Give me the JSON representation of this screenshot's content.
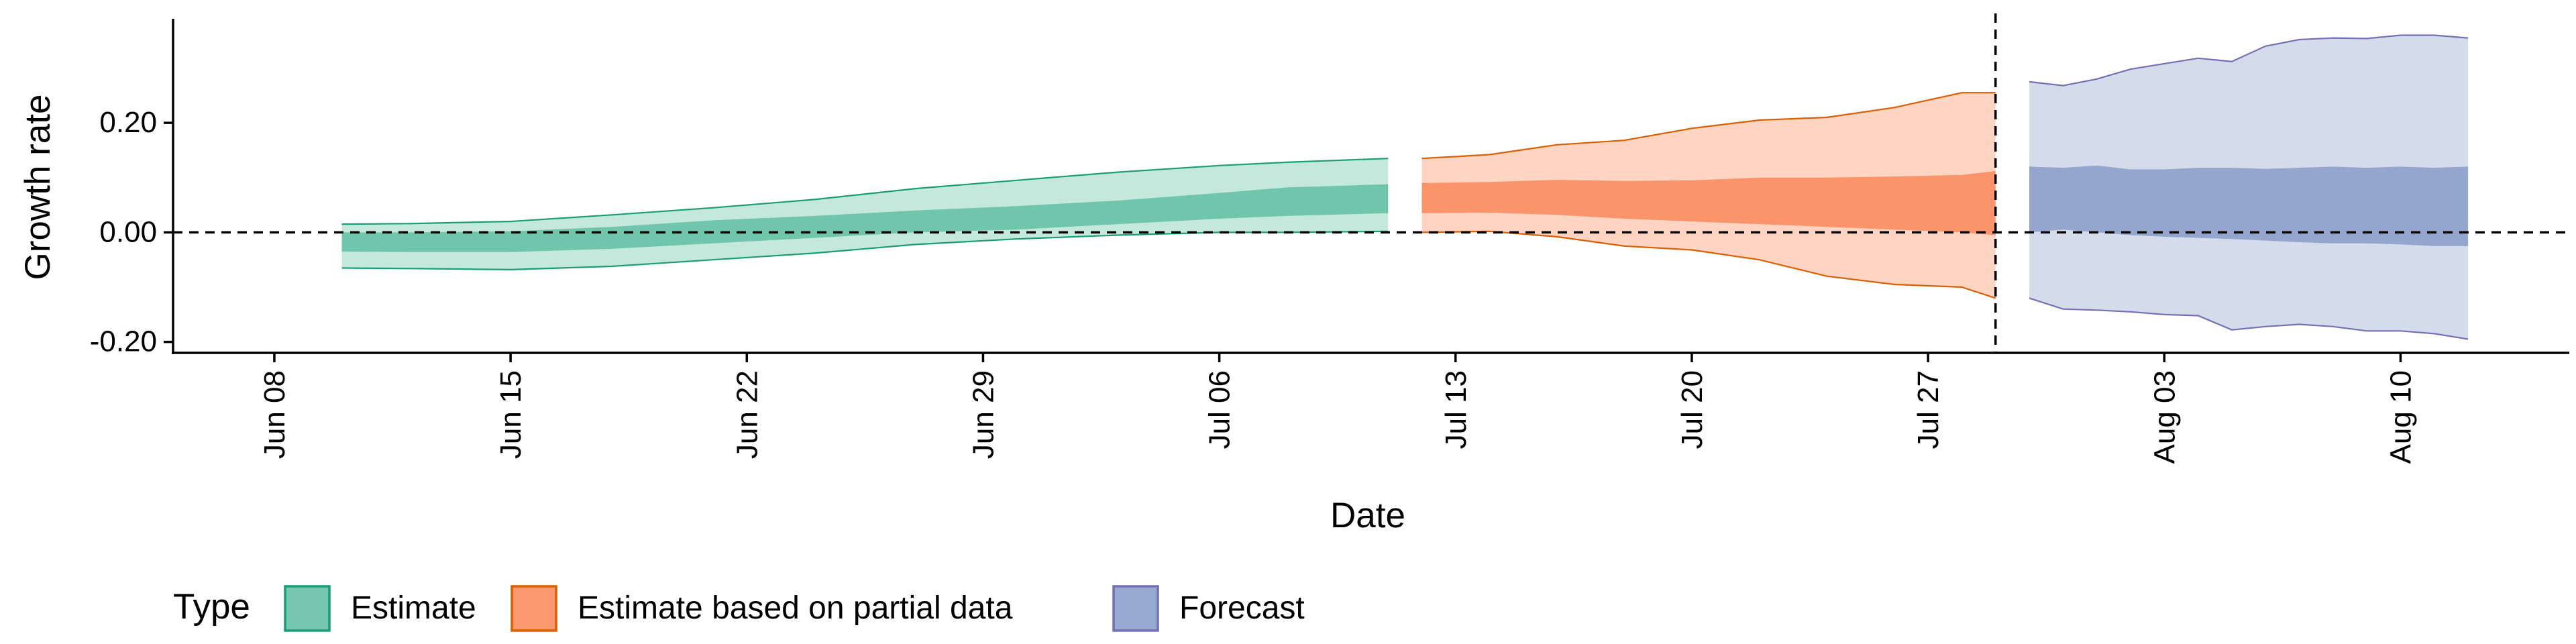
{
  "chart_data": {
    "type": "area",
    "xlabel": "Date",
    "ylabel": "Growth rate",
    "x_range": [
      "2020-06-05",
      "2020-08-15"
    ],
    "ylim": [
      -0.22,
      0.39
    ],
    "x_ticks": [
      {
        "date": "2020-06-08",
        "label": "Jun 08"
      },
      {
        "date": "2020-06-15",
        "label": "Jun 15"
      },
      {
        "date": "2020-06-22",
        "label": "Jun 22"
      },
      {
        "date": "2020-06-29",
        "label": "Jun 29"
      },
      {
        "date": "2020-07-06",
        "label": "Jul 06"
      },
      {
        "date": "2020-07-13",
        "label": "Jul 13"
      },
      {
        "date": "2020-07-20",
        "label": "Jul 20"
      },
      {
        "date": "2020-07-27",
        "label": "Jul 27"
      },
      {
        "date": "2020-08-03",
        "label": "Aug 03"
      },
      {
        "date": "2020-08-10",
        "label": "Aug 10"
      }
    ],
    "y_ticks": [
      {
        "value": -0.2,
        "label": "-0.20"
      },
      {
        "value": 0.0,
        "label": "0.00"
      },
      {
        "value": 0.2,
        "label": "0.20"
      }
    ],
    "reference_lines": [
      {
        "axis": "y",
        "value": 0.0,
        "style": "dashed"
      },
      {
        "axis": "x",
        "value": "2020-07-29",
        "style": "dashed"
      }
    ],
    "legend": {
      "title": "Type",
      "position": "bottom-left"
    },
    "series": [
      {
        "name": "Estimate",
        "fill_color": "#66c2a5",
        "stroke_color": "#1b9e77",
        "points": [
          {
            "x": "2020-06-10",
            "lower_90": -0.065,
            "lower_50": -0.035,
            "upper_50": 0.0,
            "upper_90": 0.015
          },
          {
            "x": "2020-06-12",
            "lower_90": -0.066,
            "lower_50": -0.036,
            "upper_50": 0.0,
            "upper_90": 0.016
          },
          {
            "x": "2020-06-15",
            "lower_90": -0.068,
            "lower_50": -0.036,
            "upper_50": 0.002,
            "upper_90": 0.02
          },
          {
            "x": "2020-06-18",
            "lower_90": -0.062,
            "lower_50": -0.03,
            "upper_50": 0.01,
            "upper_90": 0.032
          },
          {
            "x": "2020-06-21",
            "lower_90": -0.05,
            "lower_50": -0.02,
            "upper_50": 0.022,
            "upper_90": 0.045
          },
          {
            "x": "2020-06-24",
            "lower_90": -0.038,
            "lower_50": -0.01,
            "upper_50": 0.03,
            "upper_90": 0.06
          },
          {
            "x": "2020-06-27",
            "lower_90": -0.022,
            "lower_50": 0.0,
            "upper_50": 0.04,
            "upper_90": 0.08
          },
          {
            "x": "2020-06-30",
            "lower_90": -0.012,
            "lower_50": 0.005,
            "upper_50": 0.048,
            "upper_90": 0.095
          },
          {
            "x": "2020-07-03",
            "lower_90": -0.005,
            "lower_50": 0.015,
            "upper_50": 0.058,
            "upper_90": 0.11
          },
          {
            "x": "2020-07-06",
            "lower_90": 0.0,
            "lower_50": 0.025,
            "upper_50": 0.072,
            "upper_90": 0.122
          },
          {
            "x": "2020-07-08",
            "lower_90": 0.0,
            "lower_50": 0.03,
            "upper_50": 0.082,
            "upper_90": 0.128
          },
          {
            "x": "2020-07-11",
            "lower_90": 0.002,
            "lower_50": 0.035,
            "upper_50": 0.088,
            "upper_90": 0.135
          }
        ]
      },
      {
        "name": "Estimate based on partial data",
        "fill_color": "#fc8d62",
        "stroke_color": "#d95f02",
        "points": [
          {
            "x": "2020-07-12",
            "lower_90": 0.0,
            "lower_50": 0.035,
            "upper_50": 0.09,
            "upper_90": 0.135
          },
          {
            "x": "2020-07-14",
            "lower_90": 0.002,
            "lower_50": 0.036,
            "upper_50": 0.092,
            "upper_90": 0.142
          },
          {
            "x": "2020-07-16",
            "lower_90": -0.008,
            "lower_50": 0.032,
            "upper_50": 0.096,
            "upper_90": 0.16
          },
          {
            "x": "2020-07-18",
            "lower_90": -0.025,
            "lower_50": 0.025,
            "upper_50": 0.094,
            "upper_90": 0.168
          },
          {
            "x": "2020-07-20",
            "lower_90": -0.032,
            "lower_50": 0.02,
            "upper_50": 0.095,
            "upper_90": 0.19
          },
          {
            "x": "2020-07-22",
            "lower_90": -0.05,
            "lower_50": 0.015,
            "upper_50": 0.1,
            "upper_90": 0.205
          },
          {
            "x": "2020-07-24",
            "lower_90": -0.08,
            "lower_50": 0.01,
            "upper_50": 0.1,
            "upper_90": 0.21
          },
          {
            "x": "2020-07-26",
            "lower_90": -0.095,
            "lower_50": 0.005,
            "upper_50": 0.102,
            "upper_90": 0.228
          },
          {
            "x": "2020-07-28",
            "lower_90": -0.1,
            "lower_50": 0.0,
            "upper_50": 0.105,
            "upper_90": 0.255
          },
          {
            "x": "2020-07-29",
            "lower_90": -0.12,
            "lower_50": -0.005,
            "upper_50": 0.112,
            "upper_90": 0.255
          }
        ]
      },
      {
        "name": "Forecast",
        "fill_color": "#8da0cb",
        "stroke_color": "#7570b3",
        "points": [
          {
            "x": "2020-07-30",
            "lower_90": -0.12,
            "lower_50": 0.0,
            "upper_50": 0.12,
            "upper_90": 0.275
          },
          {
            "x": "2020-07-31",
            "lower_90": -0.14,
            "lower_50": 0.005,
            "upper_50": 0.118,
            "upper_90": 0.268
          },
          {
            "x": "2020-08-01",
            "lower_90": -0.142,
            "lower_50": 0.0,
            "upper_50": 0.122,
            "upper_90": 0.28
          },
          {
            "x": "2020-08-02",
            "lower_90": -0.145,
            "lower_50": -0.005,
            "upper_50": 0.115,
            "upper_90": 0.298
          },
          {
            "x": "2020-08-03",
            "lower_90": -0.15,
            "lower_50": -0.008,
            "upper_50": 0.115,
            "upper_90": 0.308
          },
          {
            "x": "2020-08-04",
            "lower_90": -0.152,
            "lower_50": -0.01,
            "upper_50": 0.118,
            "upper_90": 0.318
          },
          {
            "x": "2020-08-05",
            "lower_90": -0.178,
            "lower_50": -0.012,
            "upper_50": 0.118,
            "upper_90": 0.312
          },
          {
            "x": "2020-08-06",
            "lower_90": -0.172,
            "lower_50": -0.015,
            "upper_50": 0.116,
            "upper_90": 0.34
          },
          {
            "x": "2020-08-07",
            "lower_90": -0.168,
            "lower_50": -0.018,
            "upper_50": 0.118,
            "upper_90": 0.352
          },
          {
            "x": "2020-08-08",
            "lower_90": -0.172,
            "lower_50": -0.02,
            "upper_50": 0.12,
            "upper_90": 0.355
          },
          {
            "x": "2020-08-09",
            "lower_90": -0.18,
            "lower_50": -0.02,
            "upper_50": 0.118,
            "upper_90": 0.354
          },
          {
            "x": "2020-08-10",
            "lower_90": -0.18,
            "lower_50": -0.022,
            "upper_50": 0.12,
            "upper_90": 0.36
          },
          {
            "x": "2020-08-11",
            "lower_90": -0.185,
            "lower_50": -0.025,
            "upper_50": 0.118,
            "upper_90": 0.36
          },
          {
            "x": "2020-08-12",
            "lower_90": -0.195,
            "lower_50": -0.025,
            "upper_50": 0.12,
            "upper_90": 0.355
          }
        ]
      }
    ]
  }
}
